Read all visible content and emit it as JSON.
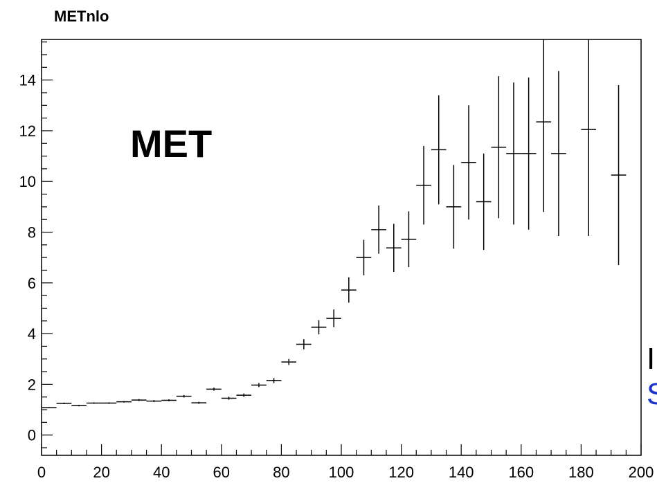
{
  "chart_data": {
    "type": "scatter",
    "title": "METnlo",
    "annotation": "MET",
    "xlim": [
      0,
      200
    ],
    "ylim": [
      -0.8,
      15.6
    ],
    "x_ticks": [
      0,
      20,
      40,
      60,
      80,
      100,
      120,
      140,
      160,
      180,
      200
    ],
    "y_ticks": [
      0,
      2,
      4,
      6,
      8,
      10,
      12,
      14
    ],
    "grid": false,
    "series": [
      {
        "points": [
          {
            "x": 2.5,
            "y": 1.08,
            "err": 0.02,
            "xerr": 2.5
          },
          {
            "x": 7.5,
            "y": 1.25,
            "err": 0.03,
            "xerr": 2.5
          },
          {
            "x": 12.5,
            "y": 1.16,
            "err": 0.03,
            "xerr": 2.5
          },
          {
            "x": 17.5,
            "y": 1.26,
            "err": 0.03,
            "xerr": 2.5
          },
          {
            "x": 22.5,
            "y": 1.26,
            "err": 0.03,
            "xerr": 2.5
          },
          {
            "x": 27.5,
            "y": 1.31,
            "err": 0.03,
            "xerr": 2.5
          },
          {
            "x": 32.5,
            "y": 1.38,
            "err": 0.04,
            "xerr": 2.5
          },
          {
            "x": 37.5,
            "y": 1.34,
            "err": 0.04,
            "xerr": 2.5
          },
          {
            "x": 42.5,
            "y": 1.37,
            "err": 0.04,
            "xerr": 2.5
          },
          {
            "x": 47.5,
            "y": 1.53,
            "err": 0.05,
            "xerr": 2.5
          },
          {
            "x": 52.5,
            "y": 1.27,
            "err": 0.04,
            "xerr": 2.5
          },
          {
            "x": 57.5,
            "y": 1.81,
            "err": 0.06,
            "xerr": 2.5
          },
          {
            "x": 62.5,
            "y": 1.45,
            "err": 0.06,
            "xerr": 2.5
          },
          {
            "x": 67.5,
            "y": 1.57,
            "err": 0.07,
            "xerr": 2.5
          },
          {
            "x": 72.5,
            "y": 1.97,
            "err": 0.08,
            "xerr": 2.5
          },
          {
            "x": 77.5,
            "y": 2.15,
            "err": 0.1,
            "xerr": 2.5
          },
          {
            "x": 82.5,
            "y": 2.88,
            "err": 0.12,
            "xerr": 2.5
          },
          {
            "x": 87.5,
            "y": 3.58,
            "err": 0.2,
            "xerr": 2.5
          },
          {
            "x": 92.5,
            "y": 4.25,
            "err": 0.28,
            "xerr": 2.5
          },
          {
            "x": 97.5,
            "y": 4.6,
            "err": 0.35,
            "xerr": 2.5
          },
          {
            "x": 102.5,
            "y": 5.72,
            "err": 0.5,
            "xerr": 2.5
          },
          {
            "x": 107.5,
            "y": 7.0,
            "err": 0.7,
            "xerr": 2.5
          },
          {
            "x": 112.5,
            "y": 8.1,
            "err": 0.95,
            "xerr": 2.5
          },
          {
            "x": 117.5,
            "y": 7.38,
            "err": 0.95,
            "xerr": 2.5
          },
          {
            "x": 122.5,
            "y": 7.72,
            "err": 1.1,
            "xerr": 2.5
          },
          {
            "x": 127.5,
            "y": 9.85,
            "err": 1.55,
            "xerr": 2.5
          },
          {
            "x": 132.5,
            "y": 11.25,
            "err": 2.15,
            "xerr": 2.5
          },
          {
            "x": 137.5,
            "y": 9.0,
            "err": 1.65,
            "xerr": 2.5
          },
          {
            "x": 142.5,
            "y": 10.75,
            "err": 2.25,
            "xerr": 2.5
          },
          {
            "x": 147.5,
            "y": 9.2,
            "err": 1.9,
            "xerr": 2.5
          },
          {
            "x": 152.5,
            "y": 11.35,
            "err": 2.8,
            "xerr": 2.5
          },
          {
            "x": 157.5,
            "y": 11.1,
            "err": 2.8,
            "xerr": 2.5
          },
          {
            "x": 162.5,
            "y": 11.1,
            "err": 3.0,
            "xerr": 2.5
          },
          {
            "x": 167.5,
            "y": 12.35,
            "err": 3.55,
            "xerr": 2.5
          },
          {
            "x": 172.5,
            "y": 11.1,
            "err": 3.25,
            "xerr": 2.5
          },
          {
            "x": 182.5,
            "y": 12.05,
            "err": 4.2,
            "xerr": 2.5
          },
          {
            "x": 192.5,
            "y": 10.25,
            "err": 3.55,
            "xerr": 2.5
          }
        ]
      }
    ]
  },
  "overflow_text": {
    "black": "I",
    "blue": "S"
  }
}
